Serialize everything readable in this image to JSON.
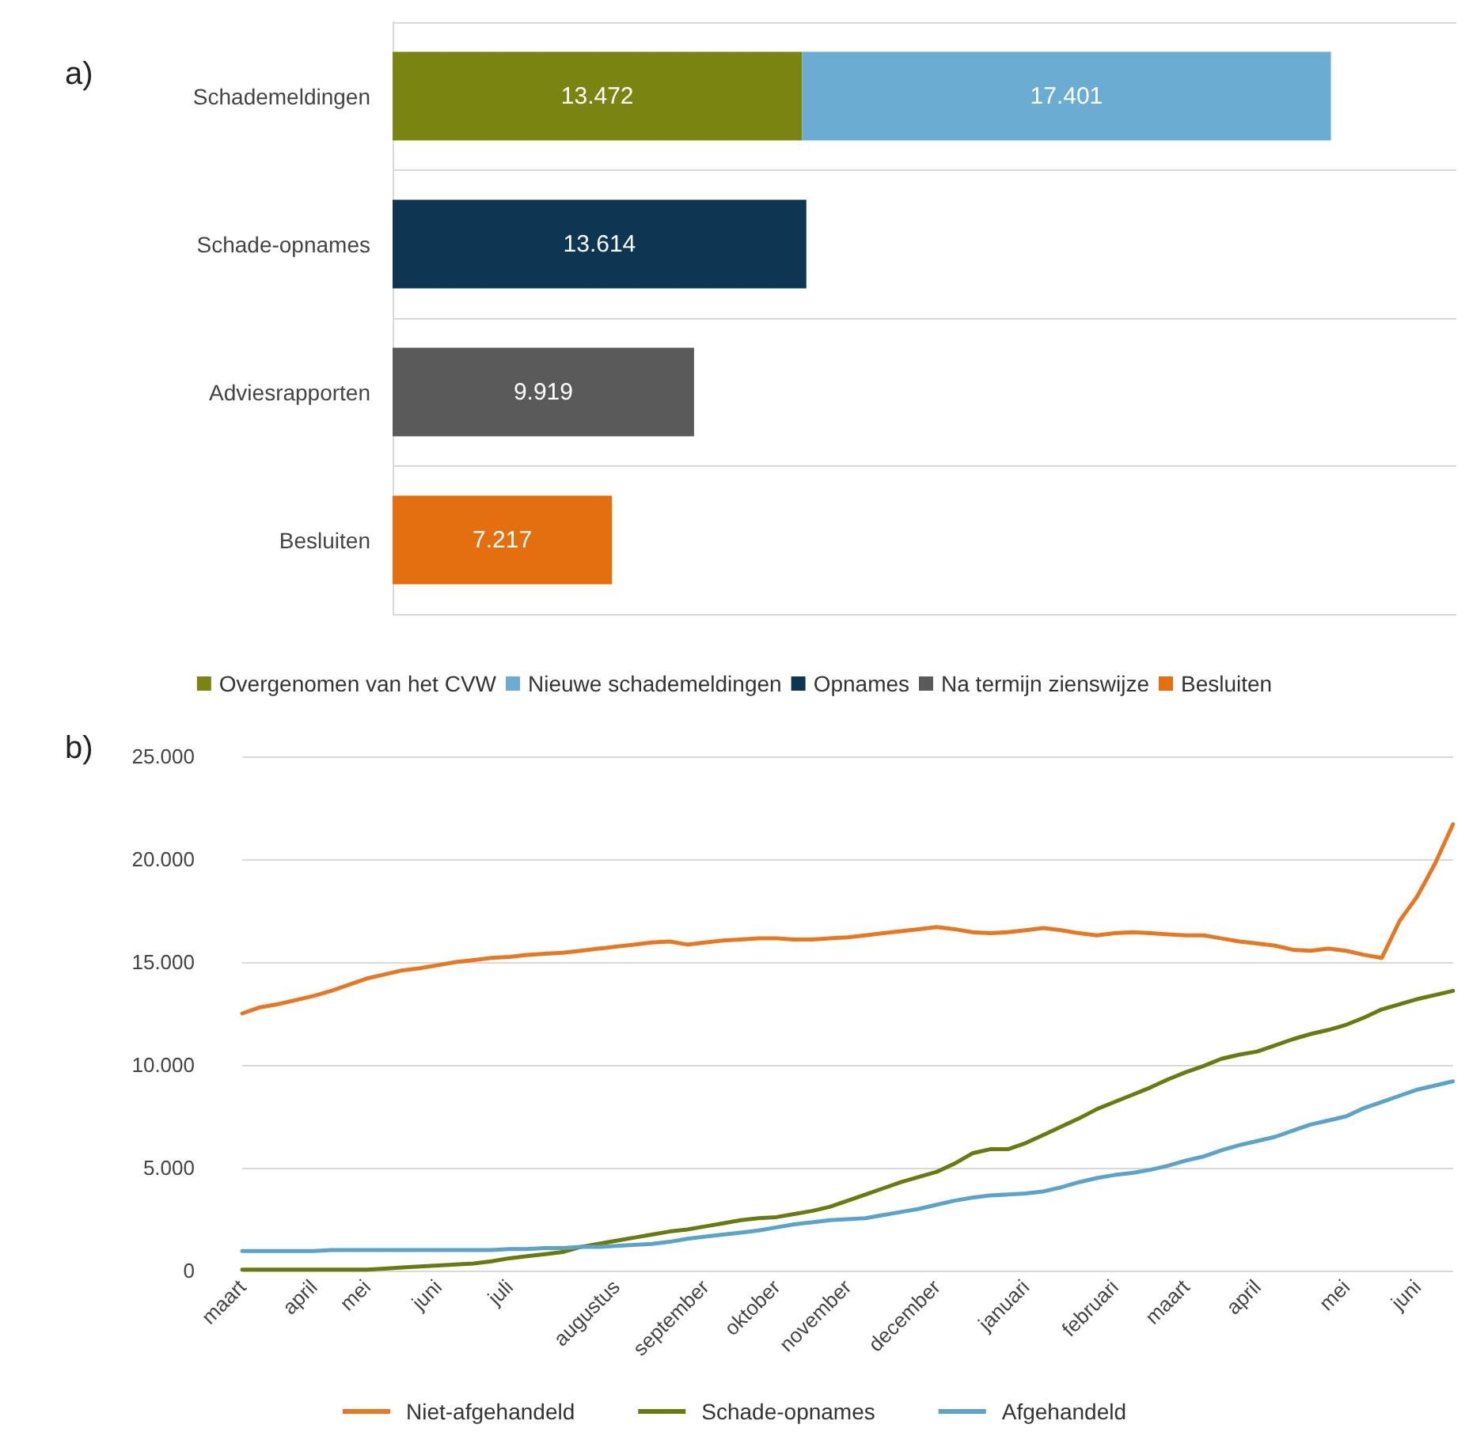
{
  "chart_data": [
    {
      "type": "bar",
      "title": "a)",
      "orientation": "horizontal",
      "stacked": true,
      "grid": "y",
      "legend": "bottom",
      "categories": [
        "Schademeldingen",
        "Schade-opnames",
        "Adviesrapporten",
        "Besluiten"
      ],
      "series": [
        {
          "name": "Overgenomen van het CVW",
          "color": "#7a8410",
          "values": [
            13472,
            null,
            null,
            null
          ],
          "value_labels": [
            "13.472",
            null,
            null,
            null
          ]
        },
        {
          "name": "Nieuwe schademeldingen",
          "color": "#6badd2",
          "values": [
            17401,
            null,
            null,
            null
          ],
          "value_labels": [
            "17.401",
            null,
            null,
            null
          ]
        },
        {
          "name": "Opnames",
          "color": "#0c3651",
          "values": [
            null,
            13614,
            null,
            null
          ],
          "value_labels": [
            null,
            "13.614",
            null,
            null
          ]
        },
        {
          "name": "Na termijn zienswijze",
          "color": "#5a5a5a",
          "values": [
            null,
            null,
            9919,
            null
          ],
          "value_labels": [
            null,
            null,
            "9.919",
            null
          ]
        },
        {
          "name": "Besluiten",
          "color": "#e46f0f",
          "values": [
            null,
            null,
            null,
            7217
          ],
          "value_labels": [
            null,
            null,
            null,
            "7.217"
          ]
        }
      ]
    },
    {
      "type": "line",
      "title": "b)",
      "grid": "y",
      "legend": "bottom",
      "marker": "none",
      "line_style": "solid",
      "ylim": [
        0,
        25000
      ],
      "yticks": [
        0,
        {
          "value": 5000,
          "label": "5.000"
        },
        {
          "value": 10000,
          "label": "10.000"
        },
        {
          "value": 15000,
          "label": "15.000"
        },
        {
          "value": 20000,
          "label": "20.000"
        },
        {
          "value": 25000,
          "label": "25.000"
        }
      ],
      "categories": [
        "maart",
        null,
        null,
        null,
        "april",
        null,
        null,
        "mei",
        null,
        null,
        null,
        "juni",
        null,
        null,
        null,
        "juli",
        null,
        null,
        null,
        null,
        null,
        "augustus",
        null,
        null,
        null,
        null,
        "september",
        null,
        null,
        null,
        "oktober",
        null,
        null,
        null,
        "november",
        null,
        null,
        null,
        null,
        "december",
        null,
        null,
        null,
        null,
        "januari",
        null,
        null,
        null,
        null,
        "februari",
        null,
        null,
        null,
        "maart",
        null,
        null,
        null,
        "april",
        null,
        null,
        null,
        null,
        "mei",
        null,
        null,
        null,
        "juni",
        null,
        null
      ],
      "series": [
        {
          "name": "Niet-afgehandeld",
          "color": "#e87722",
          "values": [
            12500,
            12800,
            12950,
            13150,
            13350,
            13600,
            13900,
            14200,
            14400,
            14600,
            14700,
            14850,
            15000,
            15100,
            15200,
            15250,
            15350,
            15400,
            15450,
            15550,
            15650,
            15750,
            15850,
            15950,
            16000,
            15850,
            15950,
            16050,
            16100,
            16150,
            16150,
            16100,
            16100,
            16150,
            16200,
            16300,
            16400,
            16500,
            16600,
            16700,
            16600,
            16450,
            16400,
            16450,
            16550,
            16650,
            16550,
            16400,
            16300,
            16400,
            16450,
            16400,
            16350,
            16300,
            16300,
            16150,
            16000,
            15900,
            15800,
            15600,
            15550,
            15650,
            15550,
            15350,
            15200,
            17000,
            18200,
            19800,
            21700
          ]
        },
        {
          "name": "Schade-opnames",
          "color": "#6b7a0f",
          "values": [
            50,
            50,
            50,
            50,
            50,
            50,
            50,
            50,
            100,
            150,
            200,
            250,
            300,
            350,
            450,
            600,
            700,
            800,
            900,
            1150,
            1300,
            1450,
            1600,
            1750,
            1900,
            2000,
            2150,
            2300,
            2450,
            2550,
            2600,
            2750,
            2900,
            3100,
            3400,
            3700,
            4000,
            4300,
            4550,
            4800,
            5200,
            5700,
            5900,
            5900,
            6200,
            6600,
            7000,
            7400,
            7850,
            8200,
            8550,
            8900,
            9300,
            9650,
            9950,
            10300,
            10500,
            10650,
            10950,
            11250,
            11500,
            11700,
            11950,
            12300,
            12700,
            12950,
            13200,
            13400,
            13600
          ]
        },
        {
          "name": "Afgehandeld",
          "color": "#5ba3c9",
          "values": [
            950,
            950,
            950,
            950,
            950,
            1000,
            1000,
            1000,
            1000,
            1000,
            1000,
            1000,
            1000,
            1000,
            1000,
            1050,
            1050,
            1100,
            1100,
            1150,
            1150,
            1200,
            1250,
            1300,
            1400,
            1550,
            1650,
            1750,
            1850,
            1950,
            2100,
            2250,
            2350,
            2450,
            2500,
            2550,
            2700,
            2850,
            3000,
            3200,
            3400,
            3550,
            3650,
            3700,
            3750,
            3850,
            4050,
            4300,
            4500,
            4650,
            4750,
            4900,
            5100,
            5350,
            5550,
            5850,
            6100,
            6300,
            6500,
            6800,
            7100,
            7300,
            7500,
            7900,
            8200,
            8500,
            8800,
            9000,
            9200
          ]
        }
      ]
    }
  ]
}
